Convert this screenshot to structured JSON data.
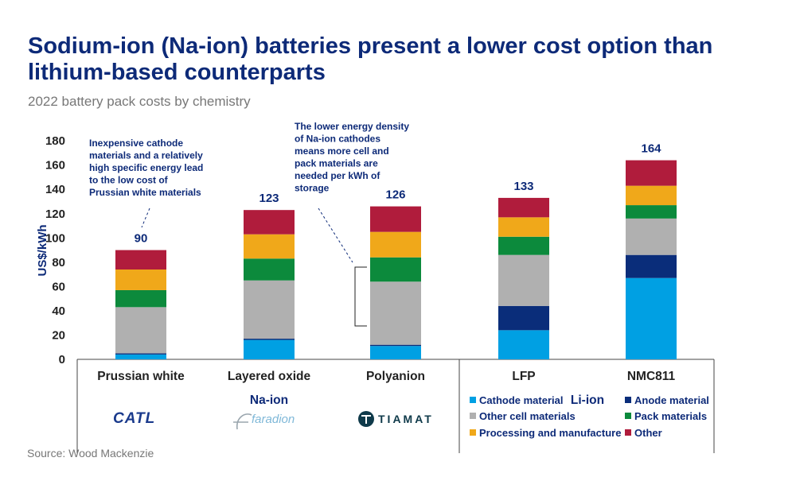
{
  "title": "Sodium-ion (Na-ion) batteries present a lower cost option than lithium-based counterparts",
  "subtitle": "2022 battery pack costs by chemistry",
  "source": "Source: Wood Mackenzie",
  "logos": [
    {
      "name": "catl-logo",
      "text": "CATL"
    },
    {
      "name": "faradion-logo",
      "text": "faradion"
    },
    {
      "name": "tiamat-logo",
      "text": "TIAMAT"
    }
  ],
  "annotations": {
    "left": [
      "Inexpensive cathode",
      "materials and a relatively",
      "high specific energy lead",
      "to the low cost of",
      "Prussian white materials"
    ],
    "right": [
      "The lower energy density",
      "of Na-ion cathodes",
      "means more cell and",
      "pack materials are",
      "needed per kWh of",
      "storage"
    ]
  },
  "chart_data": {
    "type": "bar",
    "stacked": true,
    "ylabel": "US$/kWh",
    "ylim": [
      0,
      180
    ],
    "yticks": [
      0,
      20,
      40,
      60,
      80,
      100,
      120,
      140,
      160,
      180
    ],
    "grid": false,
    "legend_position": "bottom-right",
    "categories": [
      "Prussian white",
      "Layered oxide",
      "Polyanion",
      "LFP",
      "NMC811"
    ],
    "groups": [
      {
        "label": "Na-ion",
        "categories": [
          "Prussian white",
          "Layered oxide",
          "Polyanion"
        ]
      },
      {
        "label": "Li-ion",
        "categories": [
          "LFP",
          "NMC811"
        ]
      }
    ],
    "totals": [
      90,
      123,
      126,
      133,
      164
    ],
    "series": [
      {
        "name": "Cathode material",
        "color": "#00a0e3",
        "values": [
          4,
          16,
          11,
          24,
          67
        ]
      },
      {
        "name": "Anode material",
        "color": "#0a2d7a",
        "values": [
          1,
          1,
          1,
          20,
          19
        ]
      },
      {
        "name": "Other cell materials",
        "color": "#b0b0b0",
        "values": [
          38,
          48,
          52,
          42,
          30
        ]
      },
      {
        "name": "Pack materials",
        "color": "#0c8a3c",
        "values": [
          14,
          18,
          20,
          15,
          11
        ]
      },
      {
        "name": "Processing and manufacture",
        "color": "#f0a81a",
        "values": [
          17,
          20,
          21,
          16,
          16
        ]
      },
      {
        "name": "Other",
        "color": "#b01c3c",
        "values": [
          16,
          20,
          21,
          16,
          21
        ]
      }
    ]
  }
}
